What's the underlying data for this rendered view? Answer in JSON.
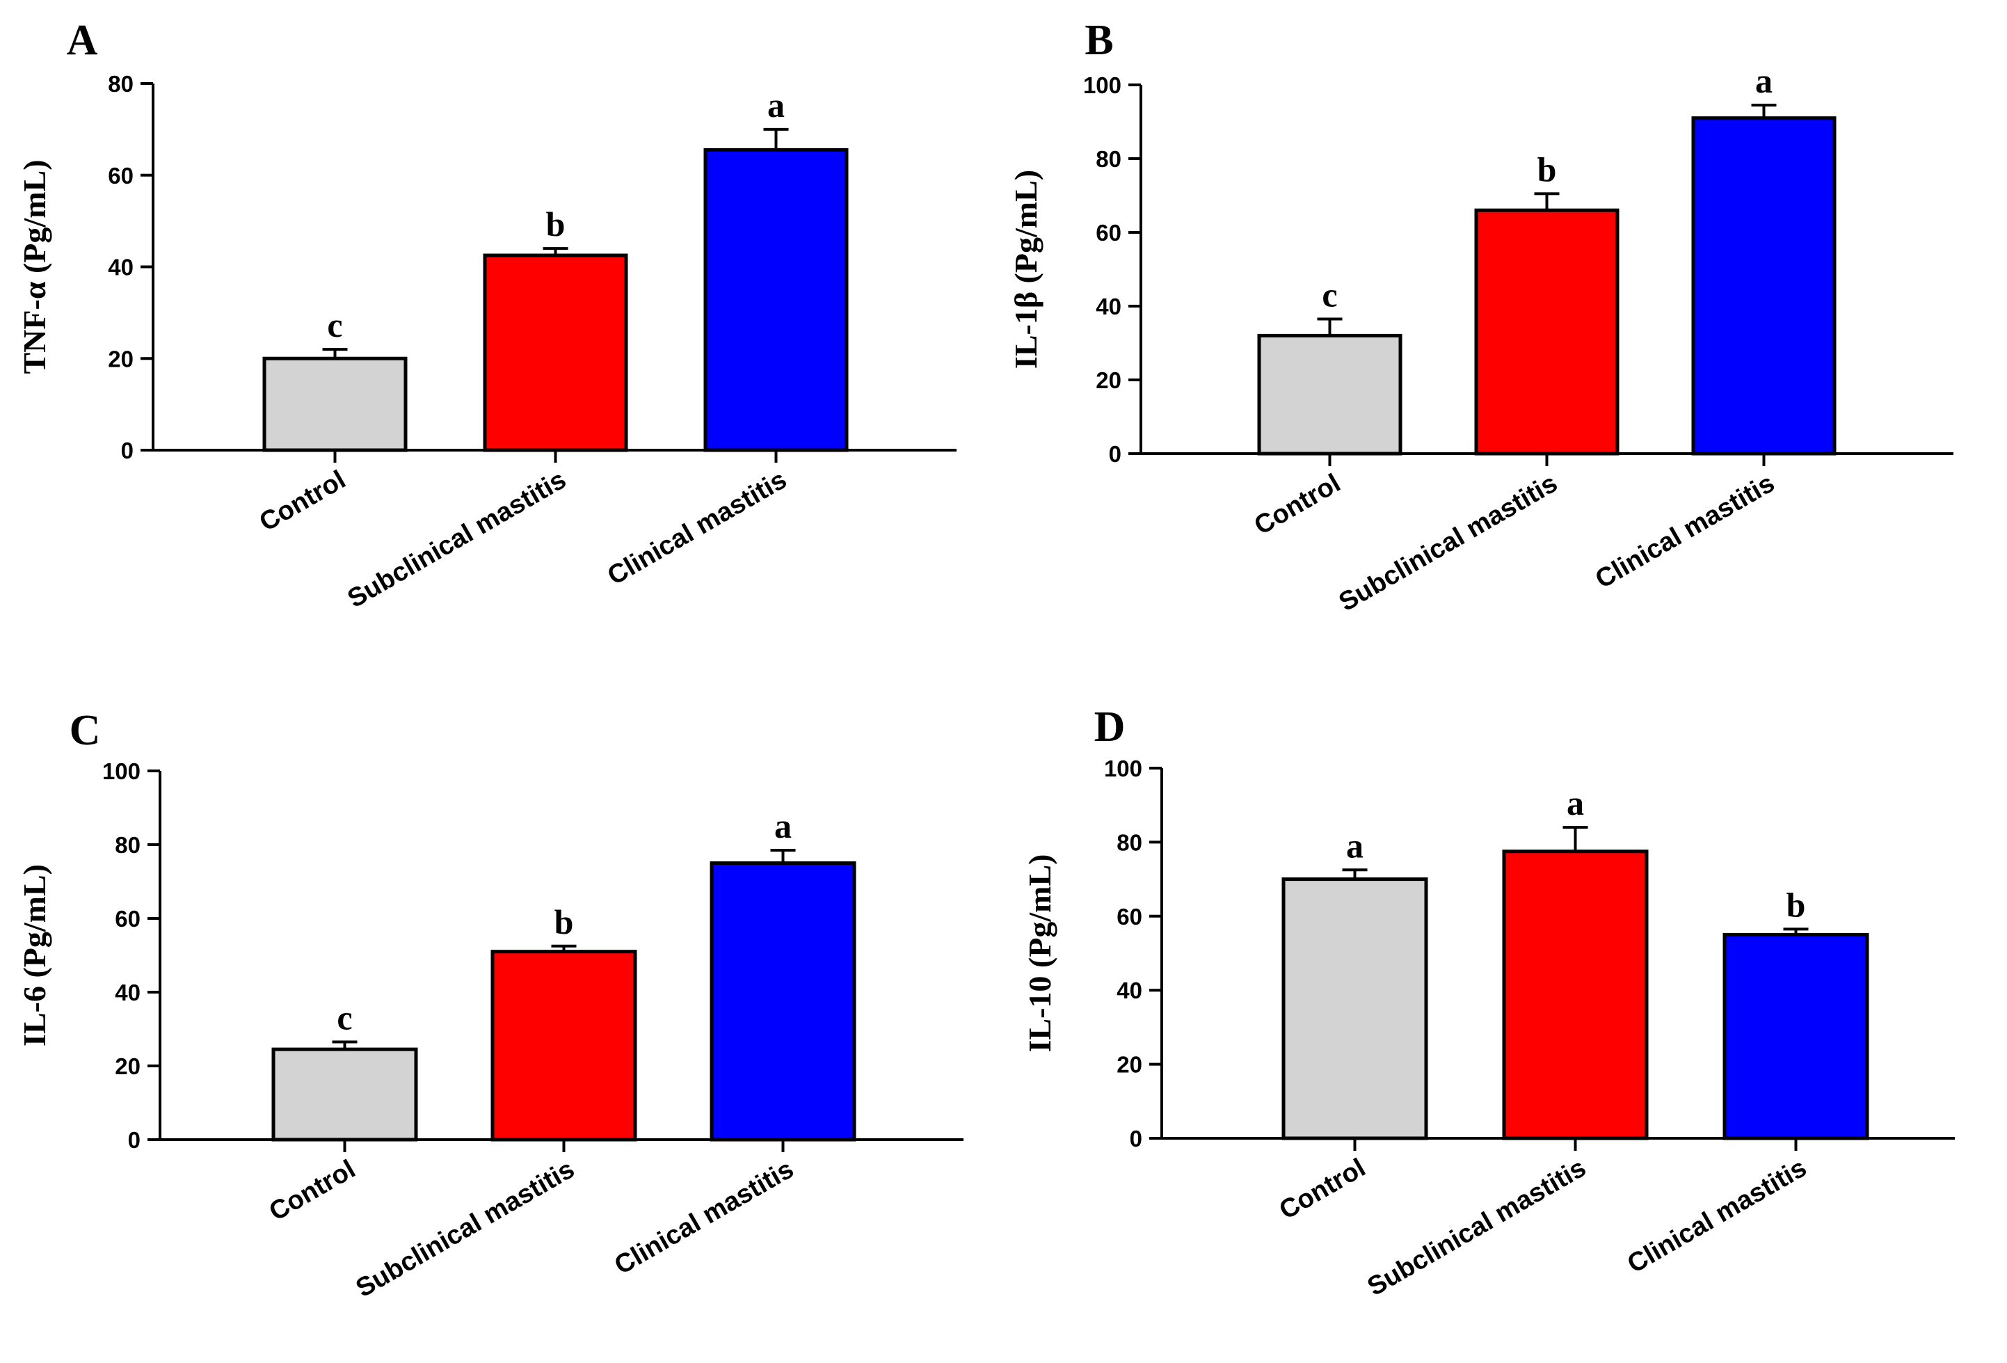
{
  "chart_data": [
    {
      "panel": "A",
      "type": "bar",
      "ylabel": "TNF-α (Pg/mL)",
      "xlabel": "",
      "categories": [
        "Control",
        "Subclinical mastitis",
        "Clinical mastitis"
      ],
      "values": [
        20,
        42.5,
        65.5
      ],
      "errors": [
        2,
        1.5,
        4.5
      ],
      "significance": [
        "c",
        "b",
        "a"
      ],
      "colors": [
        "#d3d3d3",
        "#ff0000",
        "#0000ff"
      ],
      "ylim": [
        0,
        80
      ],
      "yticks": [
        0,
        20,
        40,
        60,
        80
      ]
    },
    {
      "panel": "B",
      "type": "bar",
      "ylabel": "IL-1β (Pg/mL)",
      "xlabel": "",
      "categories": [
        "Control",
        "Subclinical mastitis",
        "Clinical mastitis"
      ],
      "values": [
        32,
        66,
        91
      ],
      "errors": [
        4.5,
        4.5,
        3.5
      ],
      "significance": [
        "c",
        "b",
        "a"
      ],
      "colors": [
        "#d3d3d3",
        "#ff0000",
        "#0000ff"
      ],
      "ylim": [
        0,
        100
      ],
      "yticks": [
        0,
        20,
        40,
        60,
        80,
        100
      ]
    },
    {
      "panel": "C",
      "type": "bar",
      "ylabel": "IL-6 (Pg/mL)",
      "xlabel": "",
      "categories": [
        "Control",
        "Subclinical mastitis",
        "Clinical mastitis"
      ],
      "values": [
        24.5,
        51,
        75
      ],
      "errors": [
        2,
        1.5,
        3.5
      ],
      "significance": [
        "c",
        "b",
        "a"
      ],
      "colors": [
        "#d3d3d3",
        "#ff0000",
        "#0000ff"
      ],
      "ylim": [
        0,
        100
      ],
      "yticks": [
        0,
        20,
        40,
        60,
        80,
        100
      ]
    },
    {
      "panel": "D",
      "type": "bar",
      "ylabel": "IL-10 (Pg/mL)",
      "xlabel": "",
      "categories": [
        "Control",
        "Subclinical mastitis",
        "Clinical mastitis"
      ],
      "values": [
        70,
        77.5,
        55
      ],
      "errors": [
        2.5,
        6.5,
        1.5
      ],
      "significance": [
        "a",
        "a",
        "b"
      ],
      "colors": [
        "#d3d3d3",
        "#ff0000",
        "#0000ff"
      ],
      "ylim": [
        0,
        100
      ],
      "yticks": [
        0,
        20,
        40,
        60,
        80,
        100
      ]
    }
  ]
}
